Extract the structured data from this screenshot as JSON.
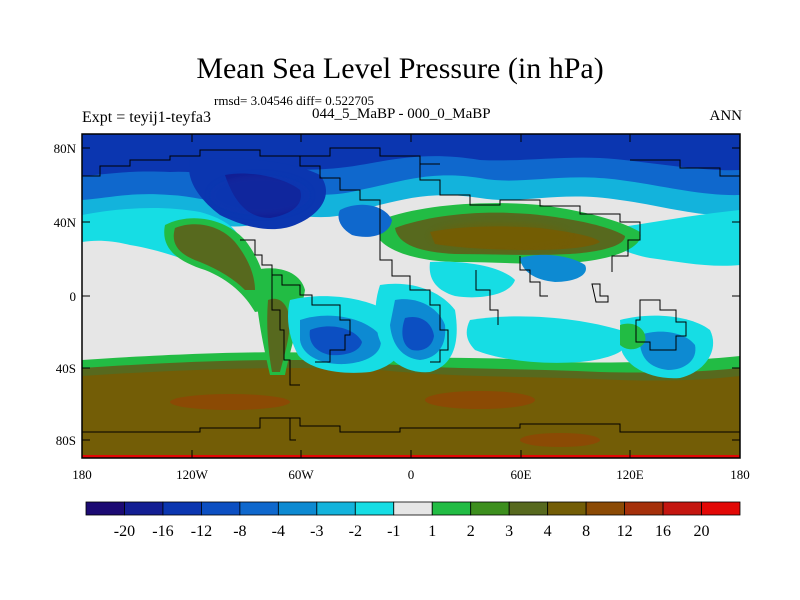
{
  "title": "Mean Sea Level Pressure (in hPa)",
  "stats": "rmsd= 3.04546 diff= 0.522705",
  "experiment": "Expt = teyij1-teyfa3",
  "period": "044_5_MaBP - 000_0_MaBP",
  "season": "ANN",
  "axes": {
    "lat_labels": [
      "80N",
      "40N",
      "0",
      "40S",
      "80S"
    ],
    "lon_labels": [
      "180",
      "120W",
      "60W",
      "0",
      "60E",
      "120E",
      "180"
    ]
  },
  "colorbar": {
    "labels": [
      "-20",
      "-16",
      "-12",
      "-8",
      "-4",
      "-3",
      "-2",
      "-1",
      "1",
      "2",
      "3",
      "4",
      "8",
      "12",
      "16",
      "20"
    ],
    "colors": [
      "#1c0a73",
      "#131e93",
      "#0b36b0",
      "#0c4fc2",
      "#0f68cd",
      "#0d8ad2",
      "#13b3dc",
      "#16dde4",
      "#e6e6e6",
      "#22bc44",
      "#3d8f1e",
      "#57691e",
      "#735d06",
      "#8b4a04",
      "#a5300a",
      "#c41610",
      "#e20806"
    ]
  },
  "palette": {
    "ocean_neutral": "#e6e6e6",
    "coastline": "#000000"
  }
}
